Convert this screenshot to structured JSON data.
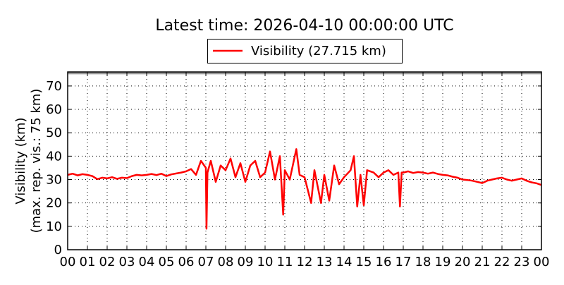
{
  "chart_data": {
    "type": "line",
    "title": "Latest time: 2026-04-10 00:00:00 UTC",
    "ylabel_lines": [
      "Visibility (km)",
      "(max. rep. vis.: 75 km)"
    ],
    "xlabel": "",
    "xticks": [
      "00",
      "01",
      "02",
      "03",
      "04",
      "05",
      "06",
      "07",
      "08",
      "09",
      "10",
      "11",
      "12",
      "13",
      "14",
      "15",
      "16",
      "17",
      "18",
      "19",
      "20",
      "21",
      "22",
      "23",
      "00"
    ],
    "xlim_hours": [
      0,
      24
    ],
    "ylim": [
      0,
      76
    ],
    "yticks": [
      0,
      10,
      20,
      30,
      40,
      50,
      60,
      70
    ],
    "max_reported_band": [
      75,
      76
    ],
    "grid": true,
    "legend_placement": "top-center",
    "series": [
      {
        "name": "Visibility (27.715 km)",
        "color": "#ff0000",
        "times": [
          "00:00",
          "00:15",
          "00:30",
          "00:45",
          "01:00",
          "01:15",
          "01:30",
          "01:45",
          "02:00",
          "02:15",
          "02:30",
          "02:45",
          "03:00",
          "03:15",
          "03:30",
          "03:45",
          "04:00",
          "04:15",
          "04:30",
          "04:45",
          "05:00",
          "05:15",
          "05:30",
          "05:45",
          "06:00",
          "06:15",
          "06:30",
          "06:40",
          "06:45",
          "07:00",
          "07:02",
          "07:05",
          "07:15",
          "07:30",
          "07:45",
          "08:00",
          "08:15",
          "08:30",
          "08:45",
          "09:00",
          "09:15",
          "09:30",
          "09:45",
          "10:00",
          "10:15",
          "10:30",
          "10:45",
          "10:55",
          "11:00",
          "11:15",
          "11:35",
          "11:45",
          "12:00",
          "12:20",
          "12:30",
          "12:50",
          "13:00",
          "13:15",
          "13:30",
          "13:45",
          "14:00",
          "14:20",
          "14:30",
          "14:40",
          "14:50",
          "15:00",
          "15:10",
          "15:30",
          "15:45",
          "16:00",
          "16:15",
          "16:30",
          "16:45",
          "16:50",
          "16:55",
          "17:00",
          "17:15",
          "17:30",
          "17:45",
          "18:00",
          "18:15",
          "18:30",
          "18:45",
          "19:00",
          "19:15",
          "19:30",
          "19:45",
          "20:00",
          "20:15",
          "20:30",
          "20:45",
          "21:00",
          "21:15",
          "21:30",
          "21:45",
          "22:00",
          "22:15",
          "22:30",
          "22:45",
          "23:00",
          "23:15",
          "23:30",
          "23:45",
          "24:00"
        ],
        "values": [
          32,
          32.5,
          31.8,
          32.3,
          32,
          31.5,
          30.2,
          30.8,
          30.5,
          31,
          30.3,
          30.8,
          30.6,
          31.5,
          32,
          31.8,
          32,
          32.4,
          31.9,
          32.5,
          31.5,
          32.2,
          32.6,
          33,
          33.5,
          34.5,
          32,
          36,
          38,
          35,
          9,
          33,
          38,
          29,
          36,
          34,
          39,
          31,
          37,
          29,
          36,
          38,
          31,
          33,
          42,
          30,
          40,
          15,
          34,
          30,
          43,
          32,
          31,
          20,
          34,
          20,
          32,
          21,
          36,
          28,
          31,
          34,
          40,
          18.5,
          32,
          19,
          34,
          33,
          31,
          33,
          34,
          32,
          33,
          18.5,
          33,
          33,
          33.5,
          32.8,
          33.2,
          33,
          32.5,
          33,
          32.4,
          32,
          31.8,
          31.2,
          30.8,
          30,
          29.8,
          29.5,
          29,
          28.5,
          29.5,
          30,
          30.5,
          30.8,
          30,
          29.5,
          30,
          30.5,
          29.5,
          28.8,
          28.4,
          27.7
        ]
      }
    ]
  }
}
